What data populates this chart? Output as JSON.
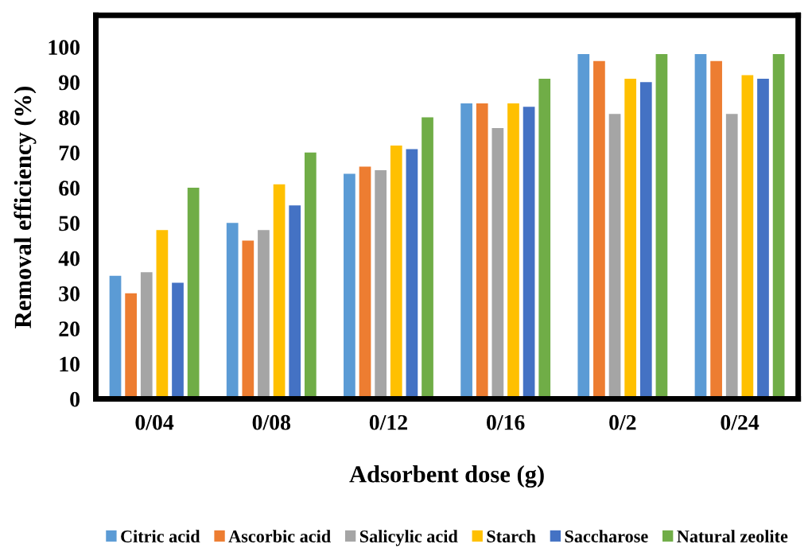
{
  "chart_data": {
    "type": "bar",
    "xlabel": "Adsorbent dose (g)",
    "ylabel": "Removal efficiency (%)",
    "categories": [
      "0/04",
      "0/08",
      "0/12",
      "0/16",
      "0/2",
      "0/24"
    ],
    "series": [
      {
        "name": "Citric acid",
        "color": "#5b9bd5",
        "values": [
          35,
          50,
          64,
          84,
          98,
          98
        ]
      },
      {
        "name": "Ascorbic acid",
        "color": "#ed7d31",
        "values": [
          30,
          45,
          66,
          84,
          96,
          96
        ]
      },
      {
        "name": "Salicylic acid",
        "color": "#a5a5a5",
        "values": [
          36,
          48,
          65,
          77,
          81,
          81
        ]
      },
      {
        "name": "Starch",
        "color": "#ffc000",
        "values": [
          48,
          61,
          72,
          84,
          91,
          92
        ]
      },
      {
        "name": "Saccharose",
        "color": "#4472c4",
        "values": [
          33,
          55,
          71,
          83,
          90,
          91
        ]
      },
      {
        "name": "Natural zeolite",
        "color": "#70ad47",
        "values": [
          60,
          70,
          80,
          91,
          98,
          98
        ]
      }
    ],
    "ylim": [
      0,
      109
    ],
    "yticks": [
      0,
      10,
      20,
      30,
      40,
      50,
      60,
      70,
      80,
      90,
      100
    ],
    "grid": false,
    "legend": "bottom"
  }
}
